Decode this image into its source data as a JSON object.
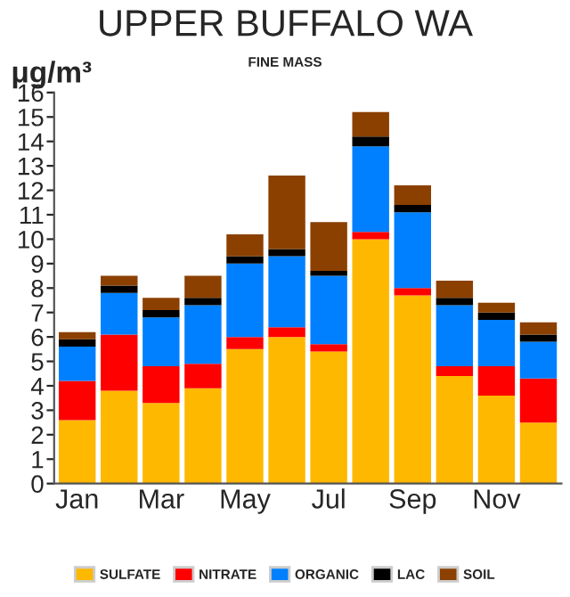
{
  "chart_data": {
    "type": "bar",
    "title": "UPPER BUFFALO WA",
    "subtitle": "FINE MASS",
    "ylabel": "μg/m³",
    "categories": [
      "Jan",
      null,
      "Mar",
      null,
      "May",
      null,
      "Jul",
      null,
      "Sep",
      null,
      "Nov",
      null
    ],
    "stacked": true,
    "series": [
      {
        "name": "SULFATE",
        "color": "#ffb800",
        "values": [
          2.6,
          3.8,
          3.3,
          3.9,
          5.5,
          6.0,
          5.4,
          10.0,
          7.7,
          4.4,
          3.6,
          2.5
        ]
      },
      {
        "name": "NITRATE",
        "color": "#ff0000",
        "values": [
          1.6,
          2.3,
          1.5,
          1.0,
          0.5,
          0.4,
          0.3,
          0.3,
          0.3,
          0.4,
          1.2,
          1.8
        ]
      },
      {
        "name": "ORGANIC",
        "color": "#0080ff",
        "values": [
          1.4,
          1.7,
          2.0,
          2.4,
          3.0,
          2.9,
          2.8,
          3.5,
          3.1,
          2.5,
          1.9,
          1.5
        ]
      },
      {
        "name": "LAC",
        "color": "#000000",
        "values": [
          0.3,
          0.3,
          0.3,
          0.3,
          0.3,
          0.3,
          0.2,
          0.4,
          0.3,
          0.3,
          0.3,
          0.3
        ]
      },
      {
        "name": "SOIL",
        "color": "#8b4000",
        "values": [
          0.3,
          0.4,
          0.5,
          0.9,
          0.9,
          3.0,
          2.0,
          1.0,
          0.8,
          0.7,
          0.4,
          0.5
        ]
      }
    ],
    "ylim": [
      0,
      16
    ],
    "yticks": [
      0,
      1,
      2,
      3,
      4,
      5,
      6,
      7,
      8,
      9,
      10,
      11,
      12,
      13,
      14,
      15,
      16
    ],
    "grid": false,
    "legend": "bottom"
  }
}
